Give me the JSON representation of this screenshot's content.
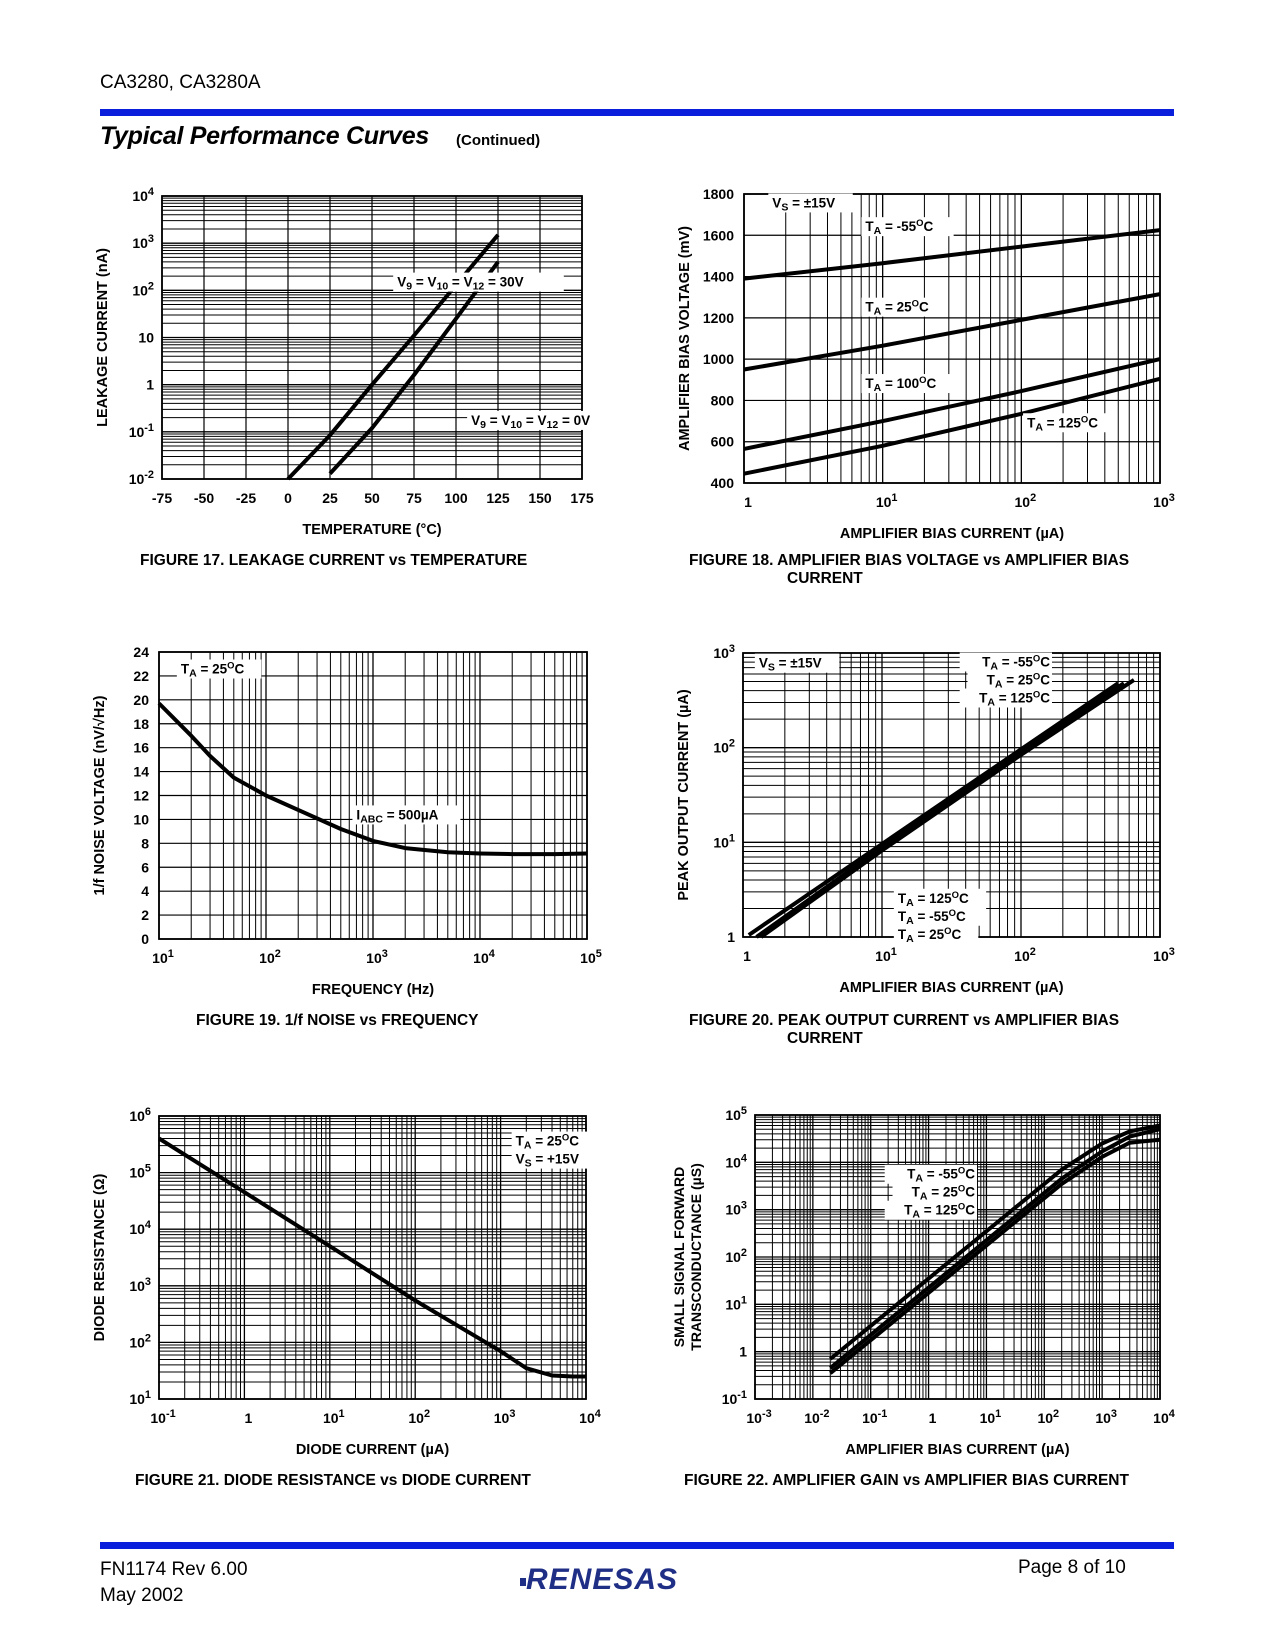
{
  "header": {
    "doc_title": "CA3280, CA3280A",
    "section_title": "Typical Performance Curves",
    "section_subtitle": "(Continued)"
  },
  "footer": {
    "doc_number": "FN1174  Rev 6.00",
    "date": "May 2002",
    "page": "Page 8 of 10",
    "logo_text": "RENESAS"
  },
  "colors": {
    "accent_bar": "#0a1fdc",
    "logo": "#1f2f86"
  },
  "chart_data": [
    {
      "id": "fig17",
      "type": "line",
      "caption": "FIGURE 17.  LEAKAGE CURRENT vs TEMPERATURE",
      "caption_lines": [
        "FIGURE 17.  LEAKAGE CURRENT vs TEMPERATURE"
      ],
      "xlabel": "TEMPERATURE (°C)",
      "ylabel": "LEAKAGE CURRENT (nA)",
      "xscale": "linear",
      "yscale": "log",
      "xlim": [
        -75,
        175
      ],
      "ylim": [
        0.01,
        10000
      ],
      "xticks": [
        -75,
        -50,
        -25,
        0,
        25,
        50,
        75,
        100,
        125,
        150,
        175
      ],
      "xtick_labels": [
        "-75",
        "-50",
        "-25",
        "0",
        "25",
        "50",
        "75",
        "100",
        "125",
        "150",
        "175"
      ],
      "ytick_labels": [
        [
          "10",
          "-2"
        ],
        [
          "10",
          "-1"
        ],
        [
          "1",
          ""
        ],
        [
          "10",
          ""
        ],
        [
          "10",
          "2"
        ],
        [
          "10",
          "3"
        ],
        [
          "10",
          "4"
        ]
      ],
      "grid": true,
      "series": [
        {
          "name": "V9 = V10 = V12 = 30V",
          "x": [
            0,
            25,
            50,
            75,
            100,
            125
          ],
          "y": [
            0.01,
            0.085,
            1.0,
            11,
            130,
            1500
          ]
        },
        {
          "name": "V9 = V10 = V12 = 0V",
          "x": [
            25,
            50,
            75,
            100,
            125
          ],
          "y": [
            0.013,
            0.12,
            1.6,
            25,
            400
          ]
        }
      ],
      "annotations": [
        {
          "text": "V9 = V10 = V12 = 30V",
          "at": [
            65,
            120
          ]
        },
        {
          "text": "V9 = V10 = V12 = 0V",
          "at": [
            109,
            0.14
          ]
        }
      ]
    },
    {
      "id": "fig18",
      "type": "line",
      "caption": "FIGURE 18.  AMPLIFIER BIAS VOLTAGE vs AMPLIFIER BIAS CURRENT",
      "caption_lines": [
        "FIGURE 18.  AMPLIFIER BIAS VOLTAGE vs AMPLIFIER BIAS",
        "CURRENT"
      ],
      "xlabel": "AMPLIFIER BIAS CURRENT (µA)",
      "ylabel": "AMPLIFIER BIAS VOLTAGE (mV)",
      "xscale": "log",
      "yscale": "linear",
      "xlim": [
        1,
        1000
      ],
      "ylim": [
        400,
        1800
      ],
      "xtick_labels": [
        [
          "1",
          ""
        ],
        [
          "10",
          "1"
        ],
        [
          "10",
          "2"
        ],
        [
          "10",
          "3"
        ]
      ],
      "ytick_labels": [
        "400",
        "600",
        "800",
        "1000",
        "1200",
        "1400",
        "1600",
        "1800"
      ],
      "yticks": [
        400,
        600,
        800,
        1000,
        1200,
        1400,
        1600,
        1800
      ],
      "grid": true,
      "series": [
        {
          "name": "TA = -55°C",
          "x": [
            1,
            10,
            100,
            1000
          ],
          "y": [
            1390,
            1465,
            1545,
            1625
          ]
        },
        {
          "name": "TA = 25°C",
          "x": [
            1,
            10,
            100,
            1000
          ],
          "y": [
            950,
            1065,
            1190,
            1315
          ]
        },
        {
          "name": "TA = 100°C",
          "x": [
            1,
            10,
            100,
            1000
          ],
          "y": [
            565,
            700,
            845,
            1000
          ]
        },
        {
          "name": "TA = 125°C",
          "x": [
            1,
            10,
            100,
            1000
          ],
          "y": [
            445,
            580,
            735,
            905
          ]
        }
      ],
      "annotations": [
        {
          "text": "VS = ±15V",
          "at": [
            1.6,
            1735
          ]
        },
        {
          "text": "TA = -55°C",
          "at": [
            7.5,
            1620
          ]
        },
        {
          "text": "TA = 25°C",
          "at": [
            7.5,
            1230
          ]
        },
        {
          "text": "TA = 100°C",
          "at": [
            7.5,
            860
          ]
        },
        {
          "text": "TA = 125°C",
          "at": [
            110,
            670
          ]
        }
      ]
    },
    {
      "id": "fig19",
      "type": "line",
      "caption": "FIGURE 19.  1/f NOISE vs FREQUENCY",
      "caption_lines": [
        "FIGURE 19.  1/f NOISE vs FREQUENCY"
      ],
      "xlabel": "FREQUENCY (Hz)",
      "ylabel": "1/f NOISE VOLTAGE (nV/√Hz)",
      "xscale": "log",
      "yscale": "linear",
      "xlim": [
        10,
        100000
      ],
      "ylim": [
        0,
        24
      ],
      "xtick_labels": [
        [
          "10",
          "1"
        ],
        [
          "10",
          "2"
        ],
        [
          "10",
          "3"
        ],
        [
          "10",
          "4"
        ],
        [
          "10",
          "5"
        ]
      ],
      "yticks": [
        0,
        2,
        4,
        6,
        8,
        10,
        12,
        14,
        16,
        18,
        20,
        22,
        24
      ],
      "ytick_labels": [
        "0",
        "2",
        "4",
        "6",
        "8",
        "10",
        "12",
        "14",
        "16",
        "18",
        "20",
        "22",
        "24"
      ],
      "grid": true,
      "series": [
        {
          "name": "IABC = 500µA",
          "x": [
            10,
            20,
            30,
            50,
            100,
            200,
            500,
            1000,
            2000,
            5000,
            10000,
            20000,
            50000,
            100000
          ],
          "y": [
            19.7,
            17.0,
            15.3,
            13.5,
            12.0,
            10.8,
            9.2,
            8.2,
            7.6,
            7.25,
            7.15,
            7.1,
            7.1,
            7.15
          ]
        }
      ],
      "annotations": [
        {
          "text": "TA = 25°C",
          "at": [
            16,
            22.2
          ]
        },
        {
          "text": "IABC = 500µA",
          "at": [
            700,
            10
          ]
        }
      ]
    },
    {
      "id": "fig20",
      "type": "line",
      "caption": "FIGURE 20.  PEAK OUTPUT CURRENT vs AMPLIFIER BIAS CURRENT",
      "caption_lines": [
        "FIGURE 20.  PEAK OUTPUT CURRENT vs AMPLIFIER BIAS",
        "CURRENT"
      ],
      "xlabel": "AMPLIFIER BIAS CURRENT (µA)",
      "ylabel": "PEAK OUTPUT CURRENT (µA)",
      "xscale": "log",
      "yscale": "log",
      "xlim": [
        1,
        1000
      ],
      "ylim": [
        1,
        1000
      ],
      "xtick_labels": [
        [
          "1",
          ""
        ],
        [
          "10",
          "1"
        ],
        [
          "10",
          "2"
        ],
        [
          "10",
          "3"
        ]
      ],
      "ytick_labels": [
        [
          "1",
          ""
        ],
        [
          "10",
          "1"
        ],
        [
          "10",
          "2"
        ],
        [
          "10",
          "3"
        ]
      ],
      "grid": true,
      "series": [
        {
          "name": "TA = -55°C",
          "x": [
            1.1,
            10,
            100,
            500
          ],
          "y": [
            1.05,
            9.6,
            96,
            480
          ]
        },
        {
          "name": "TA = 25°C",
          "x": [
            1.25,
            10,
            100,
            550
          ],
          "y": [
            1.0,
            8.8,
            88,
            480
          ]
        },
        {
          "name": "TA = 125°C",
          "x": [
            1.35,
            10,
            100,
            650
          ],
          "y": [
            1.0,
            8.2,
            84,
            520
          ]
        }
      ],
      "annotations": [
        {
          "text": "VS = ±15V",
          "at": [
            1.3,
            700
          ]
        },
        {
          "text": "TA = -55°C",
          "at": [
            140,
            720
          ]
        },
        {
          "text": "TA = 25°C",
          "at": [
            140,
            560
          ]
        },
        {
          "text": "TA = 125°C",
          "at": [
            140,
            420
          ]
        },
        {
          "text": "TA = 125°C",
          "at": [
            13,
            2.3
          ]
        },
        {
          "text": "TA = -55°C",
          "at": [
            13,
            1.7
          ]
        },
        {
          "text": "TA = 25°C",
          "at": [
            13,
            1.25
          ]
        }
      ]
    },
    {
      "id": "fig21",
      "type": "line",
      "caption": "FIGURE 21.  DIODE RESISTANCE vs DIODE CURRENT",
      "caption_lines": [
        "FIGURE 21.  DIODE RESISTANCE vs DIODE CURRENT"
      ],
      "xlabel": "DIODE CURRENT (µA)",
      "ylabel": "DIODE RESISTANCE (Ω)",
      "xscale": "log",
      "yscale": "log",
      "xlim": [
        0.1,
        10000
      ],
      "ylim": [
        10,
        1000000
      ],
      "xtick_labels": [
        [
          "10",
          "-1"
        ],
        [
          "1",
          ""
        ],
        [
          "10",
          "1"
        ],
        [
          "10",
          "2"
        ],
        [
          "10",
          "3"
        ],
        [
          "10",
          "4"
        ]
      ],
      "ytick_labels": [
        [
          "10",
          "1"
        ],
        [
          "10",
          "2"
        ],
        [
          "10",
          "3"
        ],
        [
          "10",
          "4"
        ],
        [
          "10",
          "5"
        ],
        [
          "10",
          "6"
        ]
      ],
      "grid": true,
      "series": [
        {
          "name": "Diode resistance",
          "x": [
            0.1,
            1,
            10,
            100,
            1000,
            2000,
            4000,
            7000,
            10000
          ],
          "y": [
            400000,
            45000,
            5000,
            550,
            70,
            35,
            26,
            25,
            25
          ]
        }
      ],
      "annotations": [
        {
          "text": "TA = 25°C",
          "at": [
            1500,
            300000
          ]
        },
        {
          "text": "VS = +15V",
          "at": [
            1500,
            150000
          ]
        }
      ]
    },
    {
      "id": "fig22",
      "type": "line",
      "caption": "FIGURE 22.  AMPLIFIER GAIN vs AMPLIFIER BIAS CURRENT",
      "caption_lines": [
        "FIGURE 22.  AMPLIFIER GAIN vs AMPLIFIER BIAS CURRENT"
      ],
      "xlabel": "AMPLIFIER BIAS CURRENT (µA)",
      "ylabel_lines": [
        "SMALL SIGNAL FORWARD",
        "TRANSCONDUCTANCE (µS)"
      ],
      "xscale": "log",
      "yscale": "log",
      "xlim": [
        0.001,
        10000
      ],
      "ylim": [
        0.1,
        100000
      ],
      "xtick_labels": [
        [
          "10",
          "-3"
        ],
        [
          "10",
          "-2"
        ],
        [
          "10",
          "-1"
        ],
        [
          "1",
          ""
        ],
        [
          "10",
          "1"
        ],
        [
          "10",
          "2"
        ],
        [
          "10",
          "3"
        ],
        [
          "10",
          "4"
        ]
      ],
      "ytick_labels": [
        [
          "10",
          "-1"
        ],
        [
          "1",
          ""
        ],
        [
          "10",
          "1"
        ],
        [
          "10",
          "2"
        ],
        [
          "10",
          "3"
        ],
        [
          "10",
          "4"
        ],
        [
          "10",
          "5"
        ]
      ],
      "grid": true,
      "series": [
        {
          "name": "TA = -55°C",
          "x": [
            0.02,
            0.2,
            2,
            20,
            200,
            1000,
            3000,
            10000
          ],
          "y": [
            0.7,
            7,
            70,
            700,
            7000,
            25000,
            45000,
            60000
          ]
        },
        {
          "name": "TA = 25°C",
          "x": [
            0.02,
            0.2,
            2,
            20,
            200,
            1000,
            3000,
            10000
          ],
          "y": [
            0.45,
            4.5,
            45,
            450,
            4500,
            17000,
            35000,
            50000
          ]
        },
        {
          "name": "TA = 125°C",
          "x": [
            0.02,
            0.2,
            2,
            20,
            200,
            1000,
            3000,
            10000
          ],
          "y": [
            0.35,
            3.5,
            35,
            350,
            3500,
            13000,
            26000,
            30000
          ]
        }
      ],
      "annotations": [
        {
          "text": "TA = -55°C",
          "at": [
            0.3,
            4500
          ]
        },
        {
          "text": "TA = 25°C",
          "at": [
            0.3,
            2700
          ]
        },
        {
          "text": "TA = 125°C",
          "at": [
            0.3,
            1600
          ]
        }
      ]
    }
  ]
}
